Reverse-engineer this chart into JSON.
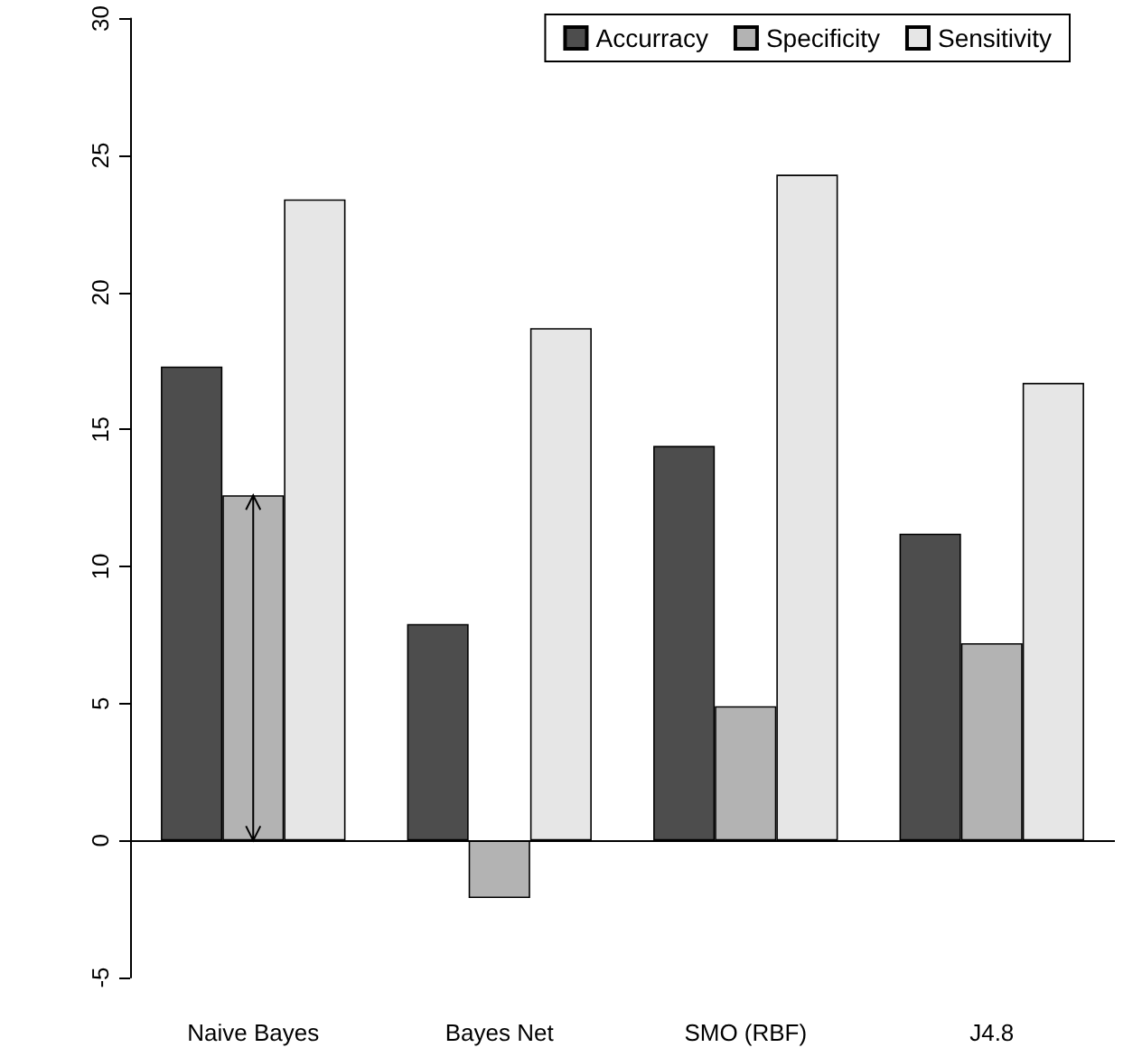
{
  "chart_data": {
    "type": "bar",
    "categories": [
      "Naive Bayes",
      "Bayes Net",
      "SMO (RBF)",
      "J4.8"
    ],
    "series": [
      {
        "name": "Accurracy",
        "color": "#4d4d4d",
        "values": [
          17.3,
          7.9,
          14.4,
          11.2
        ]
      },
      {
        "name": "Specificity",
        "color": "#b3b3b3",
        "values": [
          12.6,
          -2.1,
          4.9,
          7.2
        ]
      },
      {
        "name": "Sensitivity",
        "color": "#e6e6e6",
        "values": [
          23.4,
          18.7,
          24.3,
          16.7
        ]
      }
    ],
    "ylim": [
      -5,
      30
    ],
    "yticks": [
      -5,
      0,
      5,
      10,
      15,
      20,
      25,
      30
    ],
    "ref_lines": [
      {
        "axis": "y",
        "value": 0,
        "label": null,
        "color": "#000000"
      }
    ],
    "grid": false,
    "legend": "top right"
  }
}
